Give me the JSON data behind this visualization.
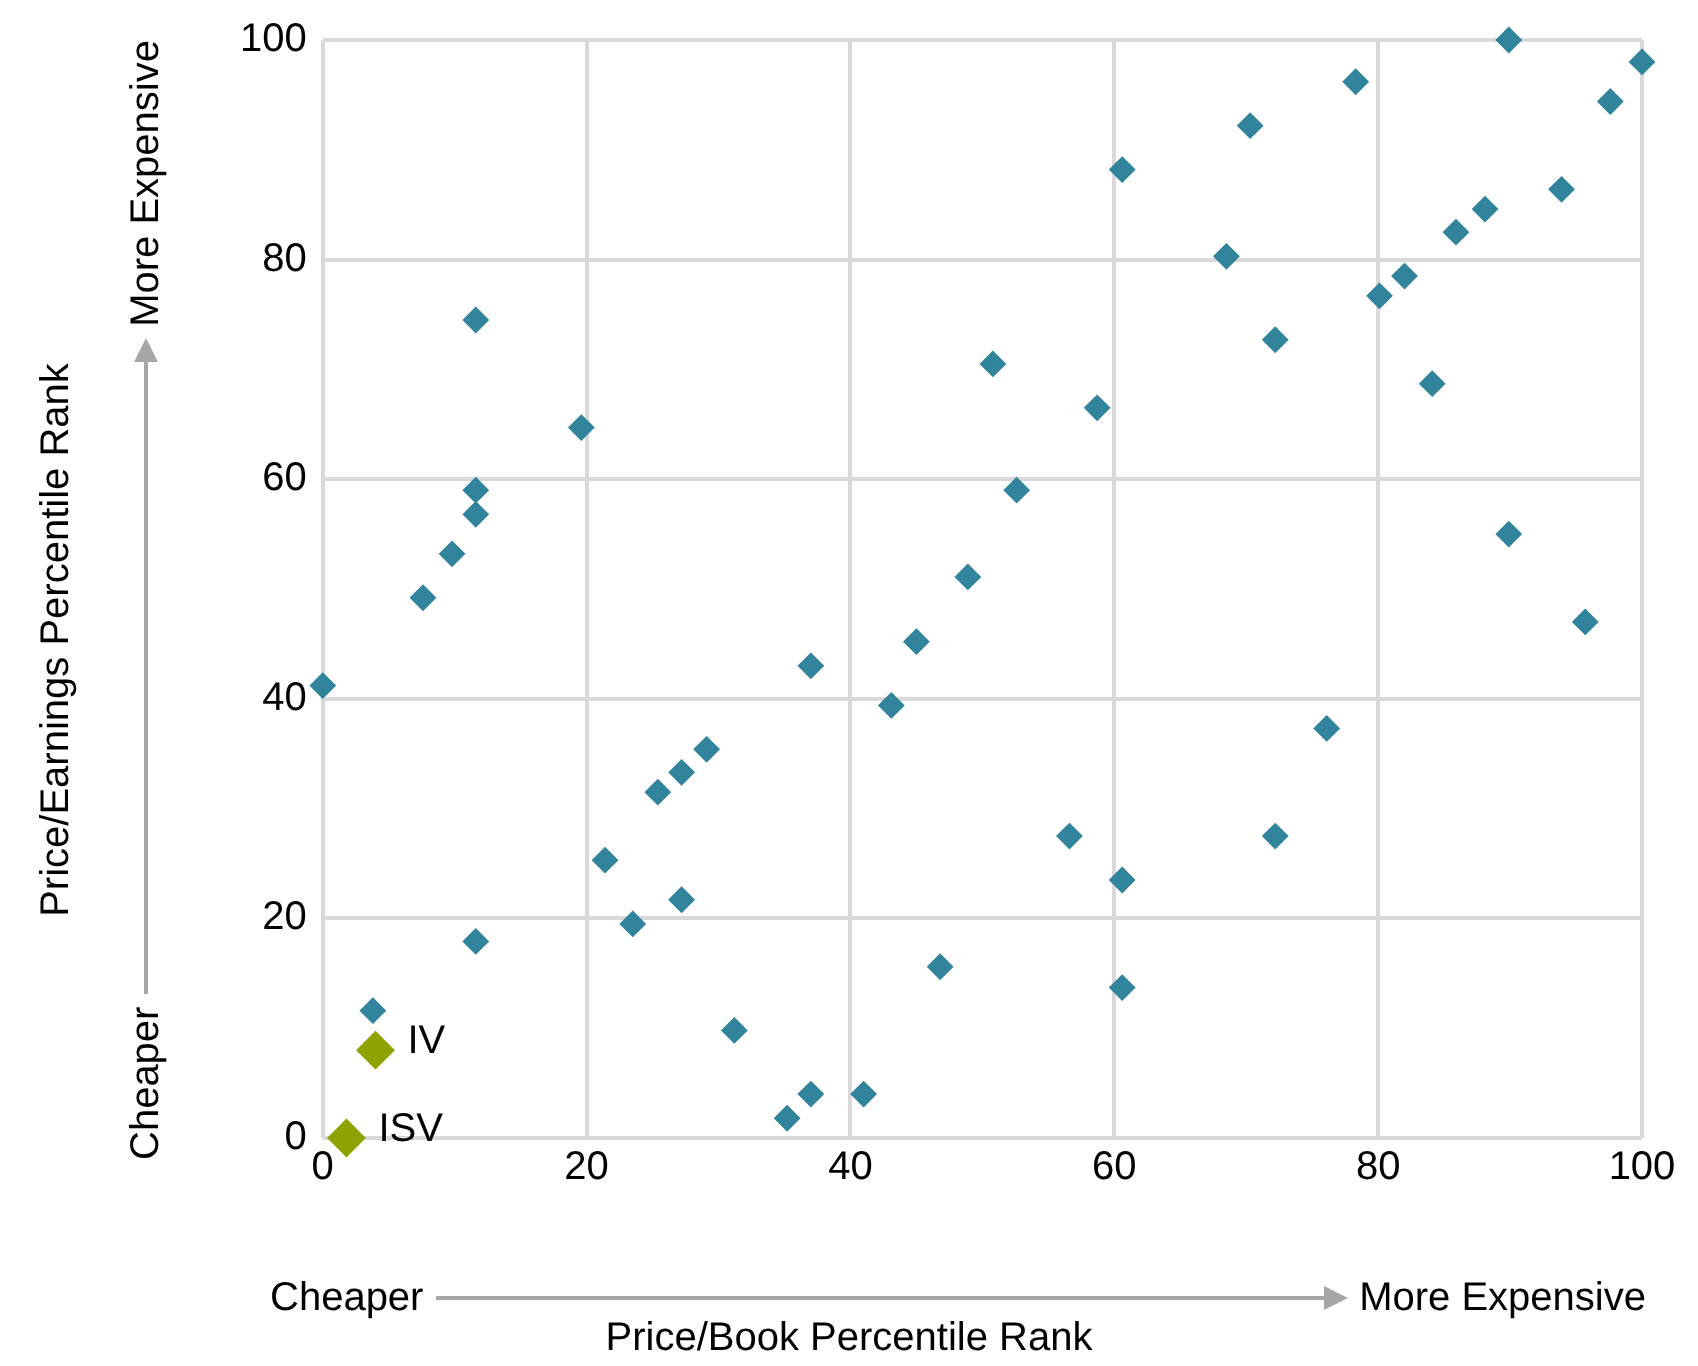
{
  "chart_data": {
    "type": "scatter",
    "xlabel": "Price/Book Percentile Rank",
    "ylabel": "Price/Earnings Percentile Rank",
    "xlim": [
      0,
      100
    ],
    "xticks": [
      0,
      20,
      40,
      60,
      80,
      100
    ],
    "ylim": [
      0,
      100
    ],
    "yticks": [
      0,
      20,
      40,
      60,
      80,
      100
    ],
    "grid": true,
    "legend": false,
    "marker": "diamond",
    "series": [
      {
        "color": "#31849b",
        "x": [
          0,
          3.8,
          7.6,
          9.8,
          11.6,
          11.6,
          11.6,
          11.6,
          19.6,
          21.4,
          23.5,
          25.4,
          27.2,
          27.2,
          29.1,
          31.2,
          35.2,
          37,
          37,
          41,
          43.1,
          45,
          46.8,
          48.9,
          50.8,
          52.6,
          56.6,
          58.7,
          60.6,
          60.6,
          60.6,
          68.5,
          70.3,
          72.2,
          72.2,
          76.1,
          78.3,
          80.1,
          82,
          84.1,
          85.9,
          88.1,
          89.9,
          89.9,
          93.9,
          95.7,
          97.6,
          100
        ],
        "values": [
          41.2,
          11.6,
          49.2,
          53.2,
          56.8,
          59,
          74.5,
          17.9,
          64.7,
          25.3,
          19.5,
          31.5,
          33.3,
          21.7,
          35.4,
          9.8,
          1.8,
          4,
          43,
          4,
          39.4,
          45.2,
          15.6,
          51.1,
          70.5,
          59,
          27.5,
          66.5,
          88.2,
          23.5,
          13.7,
          80.3,
          92.2,
          72.7,
          27.5,
          37.3,
          96.2,
          76.7,
          78.5,
          68.7,
          82.5,
          84.6,
          55,
          100,
          86.4,
          47,
          94.4,
          98
        ]
      },
      {
        "color": "#8ea300",
        "x": [
          4,
          1.8
        ],
        "values": [
          8,
          0
        ]
      }
    ],
    "annotations": [
      "Cheaper",
      "More Expensive",
      "Cheaper",
      "More Expensive",
      {
        "text": "IV",
        "x": 4,
        "y": 8
      },
      {
        "text": "ISV",
        "x": 1.8,
        "y": 0
      }
    ]
  }
}
